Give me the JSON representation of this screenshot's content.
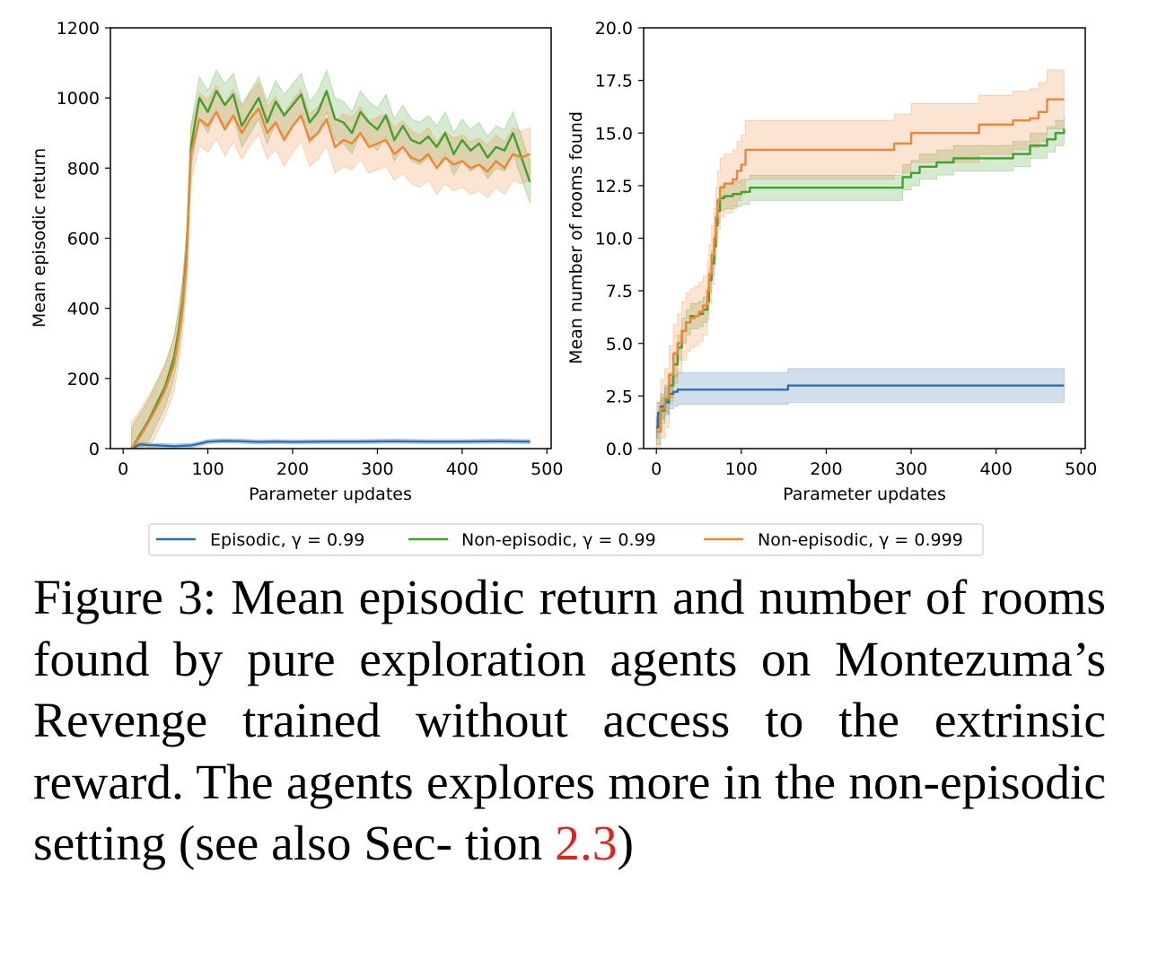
{
  "chart_data": [
    {
      "type": "line",
      "xlabel": "Parameter updates",
      "ylabel": "Mean episodic return",
      "xlim": [
        -15,
        505
      ],
      "ylim": [
        0,
        1200
      ],
      "xticks": [
        0,
        100,
        200,
        300,
        400,
        500
      ],
      "yticks": [
        0,
        200,
        400,
        600,
        800,
        1000,
        1200
      ],
      "ytick_labels": [
        "0",
        "200",
        "400",
        "600",
        "800",
        "1000",
        "1200"
      ],
      "shaded_band": true,
      "series": [
        {
          "name": "Episodic, γ = 0.99",
          "color": "#2c6fac",
          "x": [
            10,
            20,
            30,
            40,
            50,
            60,
            70,
            80,
            90,
            100,
            120,
            140,
            160,
            180,
            200,
            240,
            280,
            320,
            360,
            400,
            440,
            480
          ],
          "values": [
            2,
            12,
            10,
            9,
            8,
            7,
            8,
            9,
            14,
            20,
            22,
            21,
            19,
            20,
            19,
            20,
            20,
            21,
            20,
            20,
            21,
            20
          ],
          "band": 6
        },
        {
          "name": "Non-episodic, γ = 0.99",
          "color": "#43a02e",
          "x": [
            10,
            20,
            30,
            40,
            50,
            60,
            65,
            70,
            75,
            80,
            90,
            100,
            110,
            120,
            130,
            140,
            150,
            160,
            170,
            180,
            190,
            200,
            210,
            220,
            230,
            240,
            250,
            260,
            270,
            280,
            290,
            300,
            310,
            320,
            330,
            340,
            350,
            360,
            370,
            380,
            390,
            400,
            410,
            420,
            430,
            440,
            450,
            460,
            470,
            480
          ],
          "values": [
            0,
            40,
            80,
            130,
            180,
            260,
            330,
            420,
            560,
            860,
            1000,
            960,
            1020,
            980,
            1010,
            920,
            960,
            1000,
            930,
            990,
            950,
            980,
            1010,
            930,
            960,
            1020,
            940,
            930,
            900,
            960,
            930,
            910,
            950,
            880,
            920,
            880,
            870,
            890,
            860,
            900,
            840,
            880,
            850,
            870,
            830,
            860,
            850,
            900,
            830,
            760
          ],
          "band": 60
        },
        {
          "name": "Non-episodic, γ = 0.999",
          "color": "#f08532",
          "x": [
            10,
            20,
            30,
            40,
            50,
            60,
            65,
            70,
            75,
            80,
            90,
            100,
            110,
            120,
            130,
            140,
            150,
            160,
            170,
            180,
            190,
            200,
            210,
            220,
            230,
            240,
            250,
            260,
            270,
            280,
            290,
            300,
            310,
            320,
            330,
            340,
            350,
            360,
            370,
            380,
            390,
            400,
            410,
            420,
            430,
            440,
            450,
            460,
            470,
            480
          ],
          "values": [
            0,
            35,
            75,
            120,
            170,
            240,
            310,
            400,
            540,
            840,
            940,
            920,
            960,
            910,
            950,
            900,
            940,
            970,
            900,
            930,
            880,
            920,
            950,
            880,
            900,
            940,
            860,
            880,
            870,
            900,
            860,
            870,
            880,
            840,
            860,
            830,
            820,
            840,
            800,
            830,
            810,
            820,
            800,
            810,
            790,
            820,
            800,
            840,
            830,
            840
          ],
          "band": 75
        }
      ]
    },
    {
      "type": "line",
      "step": true,
      "xlabel": "Parameter updates",
      "ylabel": "Mean number of rooms found",
      "xlim": [
        -15,
        505
      ],
      "ylim": [
        0,
        20
      ],
      "xticks": [
        0,
        100,
        200,
        300,
        400,
        500
      ],
      "yticks": [
        0,
        2.5,
        5,
        7.5,
        10,
        12.5,
        15,
        17.5,
        20
      ],
      "ytick_labels": [
        "0.0",
        "2.5",
        "5.0",
        "7.5",
        "10.0",
        "12.5",
        "15.0",
        "17.5",
        "20.0"
      ],
      "shaded_band": true,
      "series": [
        {
          "name": "Episodic, γ = 0.99",
          "color": "#2c6fac",
          "x": [
            0,
            2,
            5,
            10,
            15,
            20,
            25,
            155,
            480
          ],
          "values": [
            1,
            1.7,
            2.0,
            2.2,
            2.6,
            2.7,
            2.8,
            3.0,
            3.0
          ],
          "band_lower": [
            0.5,
            1.2,
            1.4,
            1.6,
            1.9,
            2.0,
            2.1,
            2.2,
            2.2
          ],
          "band_upper": [
            1.5,
            2.2,
            2.6,
            3.0,
            3.3,
            3.5,
            3.6,
            3.8,
            3.8
          ]
        },
        {
          "name": "Non-episodic, γ = 0.99",
          "color": "#43a02e",
          "x": [
            0,
            5,
            10,
            15,
            20,
            25,
            30,
            35,
            40,
            45,
            50,
            55,
            60,
            62,
            65,
            68,
            70,
            72,
            75,
            80,
            90,
            100,
            110,
            150,
            200,
            250,
            280,
            290,
            300,
            310,
            330,
            350,
            380,
            400,
            420,
            440,
            460,
            470,
            480
          ],
          "values": [
            0.8,
            1.8,
            2.3,
            3.0,
            4.0,
            4.8,
            5.6,
            6.0,
            6.3,
            6.3,
            6.4,
            6.6,
            7.0,
            8.0,
            8.8,
            9.6,
            10.6,
            11.3,
            11.9,
            12.0,
            12.1,
            12.2,
            12.4,
            12.4,
            12.4,
            12.4,
            12.4,
            12.9,
            13.1,
            13.4,
            13.6,
            13.8,
            13.8,
            13.8,
            14.0,
            14.4,
            14.7,
            15.0,
            15.2
          ],
          "band": 0.6
        },
        {
          "name": "Non-episodic, γ = 0.999",
          "color": "#f08532",
          "x": [
            0,
            5,
            10,
            15,
            20,
            25,
            30,
            35,
            40,
            45,
            50,
            55,
            60,
            62,
            65,
            68,
            70,
            72,
            75,
            80,
            90,
            95,
            100,
            105,
            150,
            200,
            230,
            280,
            300,
            380,
            420,
            440,
            450,
            460,
            470,
            480
          ],
          "values": [
            0.8,
            1.9,
            2.4,
            3.5,
            4.5,
            5.0,
            5.6,
            6.0,
            6.2,
            6.3,
            6.5,
            6.8,
            7.5,
            8.3,
            9.2,
            10.0,
            11.0,
            11.8,
            12.4,
            12.6,
            12.8,
            13.2,
            13.5,
            14.2,
            14.2,
            14.2,
            14.2,
            14.5,
            15.0,
            15.4,
            15.6,
            15.7,
            16.0,
            16.6,
            16.6,
            16.6
          ],
          "band": 1.4
        }
      ]
    }
  ],
  "legend": {
    "items": [
      {
        "label": "Episodic, γ = 0.99",
        "color": "#2c6fac"
      },
      {
        "label": "Non-episodic, γ = 0.99",
        "color": "#43a02e"
      },
      {
        "label": "Non-episodic, γ = 0.999",
        "color": "#f08532"
      }
    ]
  },
  "caption": {
    "text": "Figure 3: Mean episodic return and number of rooms found by pure exploration agents on Montezuma’s Revenge trained without access to the extrinsic reward. The agents explores more in the non-episodic setting (see also Sec- tion ",
    "ref": "2.3",
    "close": ")"
  }
}
